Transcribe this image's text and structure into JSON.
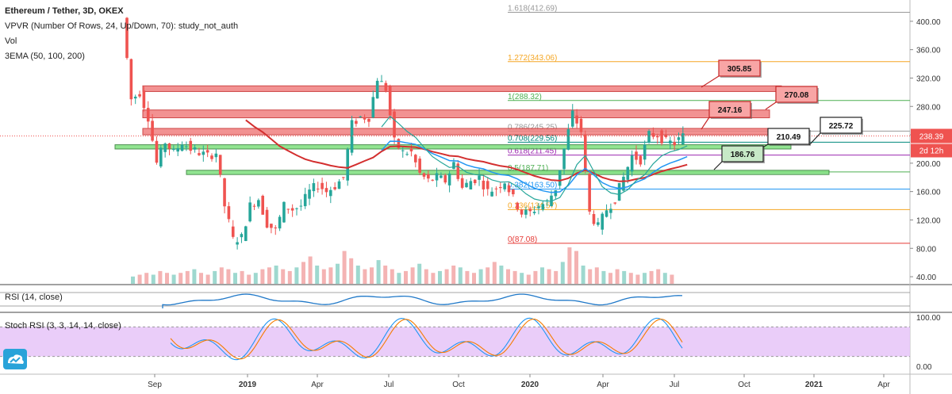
{
  "legend": {
    "title": "Ethereum / Tether, 3D, OKEX",
    "vpvr": "VPVR (Number Of Rows, 24, Up/Down, 70): study_not_auth",
    "vol": "Vol",
    "ema": "3EMA (50, 100, 200)"
  },
  "rsi_label": "RSI (14, close)",
  "stoch_label": "Stoch RSI (3, 3, 14, 14, close)",
  "price_axis_labels": [
    "400.00",
    "360.00",
    "320.00",
    "280.00",
    "240.00",
    "200.00",
    "160.00",
    "120.00",
    "80.00",
    "40.00"
  ],
  "time_axis_labels": [
    "Sep",
    "2019",
    "Apr",
    "Jul",
    "Oct",
    "2020",
    "Apr",
    "Jul",
    "Oct",
    "2021",
    "Apr"
  ],
  "osc_axis_labels": [
    "100.00",
    "0.00"
  ],
  "current_price": "238.39",
  "countdown": "2d 12h",
  "colors": {
    "up": "#26a69a",
    "down": "#ef5350",
    "resistance_zone": "#f07f7f",
    "support_zone": "#7ee07e",
    "ema50": "#26a69a",
    "ema100": "#2196f3",
    "ema200": "#d32f2f",
    "rsi": "#1f78c8",
    "stoch_k": "#2196f3",
    "stoch_d": "#f57c00",
    "stoch_band": "#e8c8f8"
  },
  "chart_data": {
    "type": "candlestick",
    "symbol": "Ethereum / Tether",
    "timeframe": "3D",
    "exchange": "OKEX",
    "ylim": [
      30,
      430
    ],
    "fib_levels": [
      {
        "ratio": "1.618",
        "price": 412.69,
        "color": "#999999"
      },
      {
        "ratio": "1.272",
        "price": 343.06,
        "color": "#f5a623"
      },
      {
        "ratio": "1",
        "price": 288.32,
        "color": "#4caf50"
      },
      {
        "ratio": "0.786",
        "price": 245.25,
        "color": "#999999"
      },
      {
        "ratio": "0.708",
        "price": 229.56,
        "color": "#00897b"
      },
      {
        "ratio": "0.618",
        "price": 211.45,
        "color": "#9c27b0"
      },
      {
        "ratio": "0.5",
        "price": 187.71,
        "color": "#4caf50"
      },
      {
        "ratio": "0.382",
        "price": 163.5,
        "color": "#2196f3"
      },
      {
        "ratio": "0.236",
        "price": 134.57,
        "color": "#f5a623"
      },
      {
        "ratio": "0",
        "price": 87.08,
        "color": "#e53935"
      }
    ],
    "annotations": [
      {
        "label": "305.85",
        "price": 305.85,
        "type": "resistance"
      },
      {
        "label": "270.08",
        "price": 270.08,
        "type": "resistance"
      },
      {
        "label": "247.16",
        "price": 247.16,
        "type": "resistance"
      },
      {
        "label": "225.72",
        "price": 225.72,
        "type": "pivot"
      },
      {
        "label": "210.49",
        "price": 210.49,
        "type": "pivot"
      },
      {
        "label": "186.76",
        "price": 186.76,
        "type": "support"
      }
    ],
    "zones": [
      {
        "type": "resistance",
        "low": 301,
        "high": 309
      },
      {
        "type": "resistance",
        "low": 264,
        "high": 275
      },
      {
        "type": "resistance",
        "low": 240,
        "high": 249
      },
      {
        "type": "support",
        "low": 220,
        "high": 226
      },
      {
        "type": "support",
        "low": 184,
        "high": 190
      }
    ],
    "price_path": [
      [
        0,
        405
      ],
      [
        2,
        290
      ],
      [
        4,
        300
      ],
      [
        6,
        265
      ],
      [
        8,
        200
      ],
      [
        10,
        230
      ],
      [
        12,
        215
      ],
      [
        14,
        230
      ],
      [
        16,
        220
      ],
      [
        18,
        215
      ],
      [
        20,
        210
      ],
      [
        22,
        215
      ],
      [
        24,
        140
      ],
      [
        26,
        92
      ],
      [
        28,
        95
      ],
      [
        30,
        140
      ],
      [
        32,
        150
      ],
      [
        34,
        115
      ],
      [
        36,
        105
      ],
      [
        38,
        140
      ],
      [
        40,
        135
      ],
      [
        42,
        140
      ],
      [
        44,
        160
      ],
      [
        46,
        170
      ],
      [
        48,
        160
      ],
      [
        50,
        168
      ],
      [
        52,
        180
      ],
      [
        54,
        255
      ],
      [
        56,
        265
      ],
      [
        58,
        265
      ],
      [
        60,
        320
      ],
      [
        62,
        305
      ],
      [
        64,
        230
      ],
      [
        66,
        215
      ],
      [
        68,
        215
      ],
      [
        70,
        185
      ],
      [
        72,
        175
      ],
      [
        74,
        180
      ],
      [
        76,
        175
      ],
      [
        78,
        200
      ],
      [
        80,
        165
      ],
      [
        82,
        175
      ],
      [
        84,
        180
      ],
      [
        86,
        160
      ],
      [
        88,
        165
      ],
      [
        90,
        175
      ],
      [
        92,
        150
      ],
      [
        94,
        130
      ],
      [
        96,
        130
      ],
      [
        98,
        140
      ],
      [
        100,
        145
      ],
      [
        102,
        165
      ],
      [
        104,
        220
      ],
      [
        106,
        270
      ],
      [
        108,
        245
      ],
      [
        110,
        130
      ],
      [
        112,
        110
      ],
      [
        114,
        135
      ],
      [
        116,
        150
      ],
      [
        118,
        180
      ],
      [
        120,
        210
      ],
      [
        122,
        205
      ],
      [
        124,
        240
      ],
      [
        126,
        240
      ],
      [
        128,
        230
      ],
      [
        130,
        228
      ],
      [
        132,
        238
      ]
    ],
    "volume": [
      4,
      5,
      6,
      5,
      7,
      6,
      5,
      6,
      7,
      8,
      6,
      5,
      7,
      9,
      8,
      6,
      7,
      5,
      6,
      8,
      9,
      10,
      8,
      7,
      9,
      12,
      15,
      10,
      8,
      9,
      11,
      18,
      14,
      10,
      8,
      9,
      13,
      10,
      8,
      6,
      7,
      9,
      11,
      8,
      6,
      7,
      8,
      10,
      9,
      7,
      6,
      8,
      9,
      12,
      10,
      8,
      7,
      6,
      5,
      7,
      9,
      8,
      7,
      12,
      20,
      18,
      10,
      8,
      9,
      7,
      6,
      8,
      7,
      6,
      5,
      6,
      7,
      8,
      6,
      5
    ],
    "rsi_range": [
      0,
      100
    ],
    "stoch_range": [
      0,
      100
    ]
  }
}
